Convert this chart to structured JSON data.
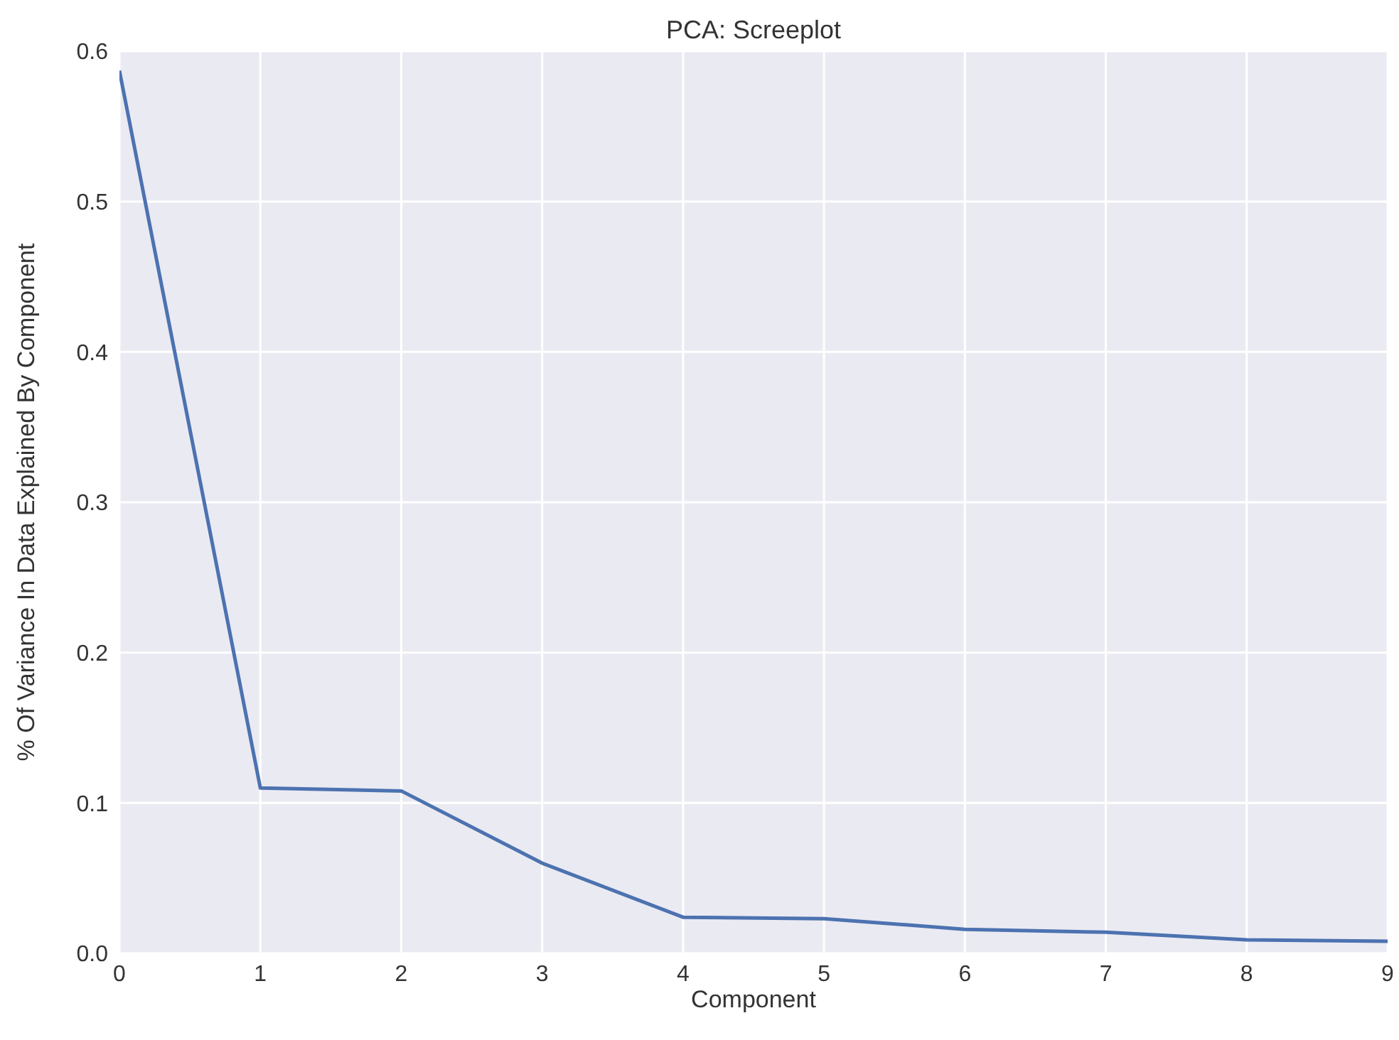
{
  "chart_data": {
    "type": "line",
    "title": "PCA: Screeplot",
    "xlabel": "Component",
    "ylabel": "% Of Variance In Data Explained By Component",
    "x": [
      0,
      1,
      2,
      3,
      4,
      5,
      6,
      7,
      8,
      9
    ],
    "series": [
      {
        "color": "#4c72b0",
        "values": [
          0.587,
          0.11,
          0.108,
          0.06,
          0.024,
          0.023,
          0.016,
          0.014,
          0.009,
          0.008
        ]
      }
    ],
    "xlim": [
      0,
      9
    ],
    "xticks": [
      0,
      1,
      2,
      3,
      4,
      5,
      6,
      7,
      8,
      9
    ],
    "ylim": [
      0,
      0.6
    ],
    "yticks": [
      {
        "value": 0,
        "label": "0.0"
      },
      {
        "value": 0.1,
        "label": "0.1"
      },
      {
        "value": 0.2,
        "label": "0.2"
      },
      {
        "value": 0.3,
        "label": "0.3"
      },
      {
        "value": 0.4,
        "label": "0.4"
      },
      {
        "value": 0.5,
        "label": "0.5"
      },
      {
        "value": 0.6,
        "label": "0.6"
      }
    ],
    "grid": true,
    "marker": "none",
    "line_style": "solid"
  }
}
